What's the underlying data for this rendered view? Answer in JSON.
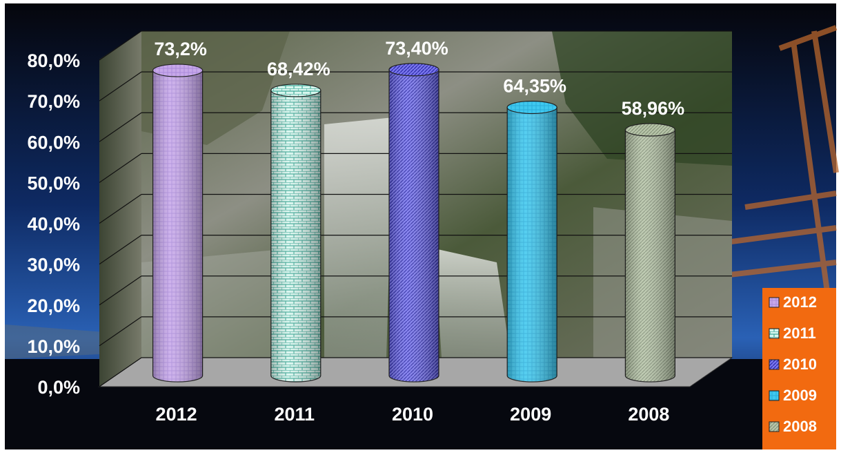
{
  "chart_data": {
    "type": "bar",
    "categories": [
      "2012",
      "2011",
      "2010",
      "2009",
      "2008"
    ],
    "values": [
      73.2,
      68.42,
      73.4,
      64.35,
      58.96
    ],
    "data_labels": [
      "73,2%",
      "68,42%",
      "73,40%",
      "64,35%",
      "58,96%"
    ],
    "ylim": [
      0,
      80
    ],
    "y_ticks": [
      "0,0%",
      "10,0%",
      "20,0%",
      "30,0%",
      "40,0%",
      "50,0%",
      "60,0%",
      "70,0%",
      "80,0%"
    ],
    "grid": true,
    "legend_placement": "bottom-right",
    "legend": [
      "2012",
      "2011",
      "2010",
      "2009",
      "2008"
    ],
    "series_colors": [
      "#c7a8ea",
      "#bfeee2",
      "#6c69e8",
      "#3fc8ef",
      "#b6c4a8"
    ],
    "legend_background": "#f26a10"
  }
}
